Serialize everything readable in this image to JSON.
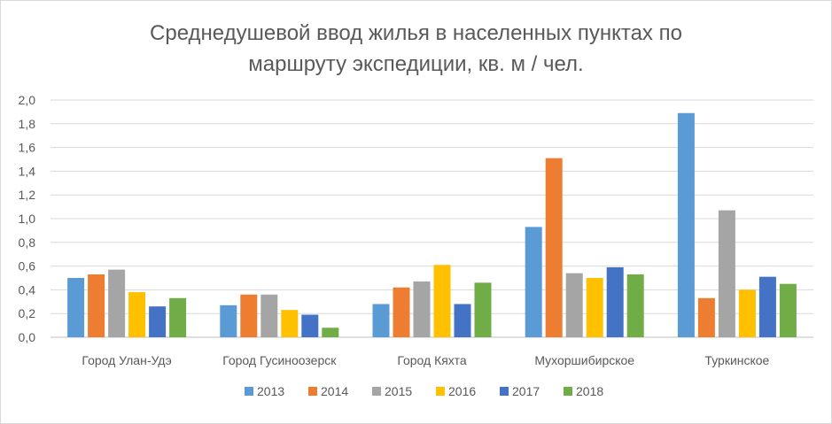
{
  "chart_data": {
    "type": "bar",
    "title_lines": [
      "Среднедушевой ввод жилья в населенных пунктах по",
      "маршруту экспедиции, кв. м / чел."
    ],
    "categories": [
      "Город Улан-Удэ",
      "Город Гусиноозерск",
      "Город Кяхта",
      "Мухоршибирское",
      "Туркинское"
    ],
    "y_ticks": [
      "0,0",
      "0,2",
      "0,4",
      "0,6",
      "0,8",
      "1,0",
      "1,2",
      "1,4",
      "1,6",
      "1,8",
      "2,0"
    ],
    "ylim": [
      0,
      2.0
    ],
    "grid": true,
    "legend_position": "bottom",
    "series": [
      {
        "name": "2013",
        "color": "#5B9BD5",
        "values": [
          0.5,
          0.27,
          0.28,
          0.93,
          1.89
        ]
      },
      {
        "name": "2014",
        "color": "#ED7D31",
        "values": [
          0.53,
          0.36,
          0.42,
          1.51,
          0.33
        ]
      },
      {
        "name": "2015",
        "color": "#A5A5A5",
        "values": [
          0.57,
          0.36,
          0.47,
          0.54,
          1.07
        ]
      },
      {
        "name": "2016",
        "color": "#FFC000",
        "values": [
          0.38,
          0.23,
          0.61,
          0.5,
          0.4
        ]
      },
      {
        "name": "2017",
        "color": "#4472C4",
        "values": [
          0.26,
          0.19,
          0.28,
          0.59,
          0.51
        ]
      },
      {
        "name": "2018",
        "color": "#70AD47",
        "values": [
          0.33,
          0.08,
          0.46,
          0.53,
          0.45
        ]
      }
    ]
  }
}
